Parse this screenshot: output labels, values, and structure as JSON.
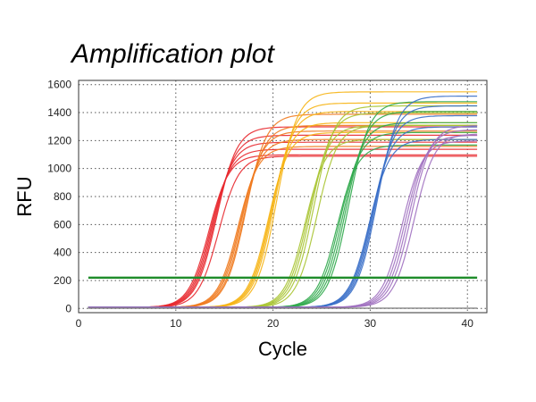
{
  "chart_data": {
    "type": "line",
    "title": "Amplification plot",
    "xlabel": "Cycle",
    "ylabel": "RFU",
    "xlim": [
      0,
      42
    ],
    "ylim": [
      -30,
      1630
    ],
    "xticks": [
      0,
      10,
      20,
      30,
      40
    ],
    "yticks": [
      0,
      200,
      400,
      600,
      800,
      1000,
      1200,
      1400,
      1600
    ],
    "grid": true,
    "legend": "none",
    "threshold": {
      "value": 220,
      "color": "#1e8c2a"
    },
    "baseline": {
      "value": 2,
      "color": "#777777"
    },
    "groups": [
      {
        "color": "#e8282e",
        "midpoints": [
          13.4,
          13.6,
          13.8,
          14.0,
          14.2,
          14.4
        ],
        "plateaus": [
          1090,
          1130,
          1180,
          1230,
          1290,
          1080
        ]
      },
      {
        "color": "#f07a1e",
        "midpoints": [
          16.4,
          16.6,
          16.8,
          17.0,
          17.2
        ],
        "plateaus": [
          1150,
          1200,
          1260,
          1300,
          1380
        ]
      },
      {
        "color": "#f6b414",
        "midpoints": [
          19.5,
          19.7,
          19.9,
          20.1,
          20.4
        ],
        "plateaus": [
          1250,
          1320,
          1400,
          1460,
          1540
        ]
      },
      {
        "color": "#a8c432",
        "midpoints": [
          23.3,
          23.6,
          23.9,
          24.2,
          24.5
        ],
        "plateaus": [
          1200,
          1300,
          1390,
          1440,
          1300
        ]
      },
      {
        "color": "#2ea84a",
        "midpoints": [
          26.6,
          26.9,
          27.2,
          27.5,
          27.8
        ],
        "plateaus": [
          1160,
          1250,
          1320,
          1400,
          1470
        ]
      },
      {
        "color": "#3a6fc8",
        "midpoints": [
          29.9,
          30.1,
          30.3,
          30.5,
          30.7
        ],
        "plateaus": [
          1200,
          1290,
          1370,
          1440,
          1510
        ]
      },
      {
        "color": "#a070c0",
        "midpoints": [
          33.3,
          33.6,
          33.9,
          34.2,
          34.5
        ],
        "plateaus": [
          1190,
          1230,
          1270,
          1300,
          1240
        ]
      }
    ]
  }
}
